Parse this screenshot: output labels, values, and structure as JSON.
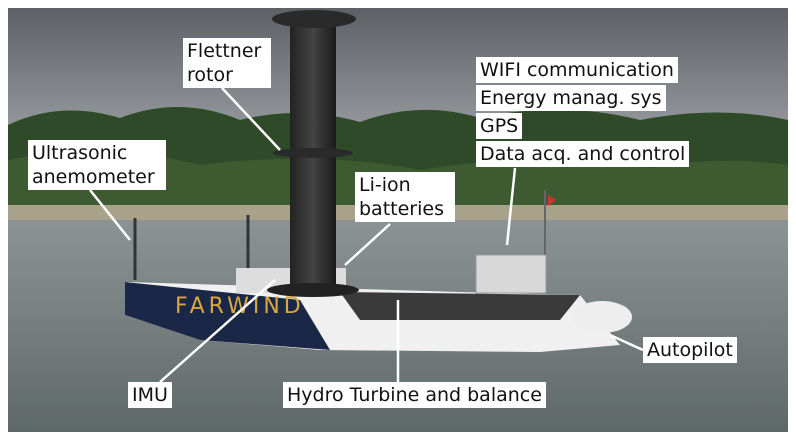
{
  "annotations": {
    "flettner_rotor": "Flettner rotor",
    "ultrasonic_anemometer": "Ultrasonic anemometer",
    "li_ion_batteries": "Li-ion batteries",
    "wifi": "WIFI communication",
    "energy": "Energy manag. sys",
    "gps": "GPS",
    "data_acq": "Data acq. and control",
    "autopilot": "Autopilot",
    "imu": "IMU",
    "hydro_turbine": "Hydro Turbine and balance"
  },
  "boat": {
    "name": "FARWIND"
  }
}
